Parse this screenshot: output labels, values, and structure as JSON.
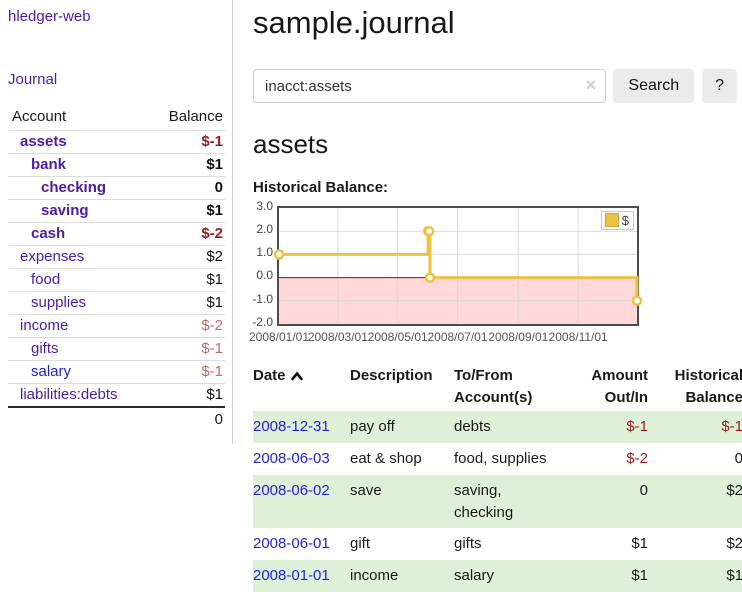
{
  "sidebar": {
    "brand": "hledger-web",
    "nav": {
      "journal": "Journal"
    },
    "accounts": {
      "col_account": "Account",
      "col_balance": "Balance",
      "items": [
        {
          "label": "assets",
          "balance": "$-1"
        },
        {
          "label": "bank",
          "balance": "$1"
        },
        {
          "label": "checking",
          "balance": "0"
        },
        {
          "label": "saving",
          "balance": "$1"
        },
        {
          "label": "cash",
          "balance": "$-2"
        },
        {
          "label": "expenses",
          "balance": "$2"
        },
        {
          "label": "food",
          "balance": "$1"
        },
        {
          "label": "supplies",
          "balance": "$1"
        },
        {
          "label": "income",
          "balance": "$-2"
        },
        {
          "label": "gifts",
          "balance": "$-1"
        },
        {
          "label": "salary",
          "balance": "$-1"
        },
        {
          "label": "liabilities:debts",
          "balance": "$1"
        }
      ],
      "total": "0"
    }
  },
  "main": {
    "title": "sample.journal",
    "search": {
      "value": "inacct:assets",
      "clear_icon": "✕",
      "button": "Search",
      "help": "?"
    },
    "section_title": "assets",
    "chart_label": "Historical Balance:"
  },
  "chart_data": {
    "type": "line",
    "title": "Historical Balance",
    "legend_label": "$",
    "legend_position": "top-right",
    "series": [
      {
        "name": "$",
        "points": [
          [
            "2008-01-01",
            1
          ],
          [
            "2008-06-01",
            2
          ],
          [
            "2008-06-02",
            2
          ],
          [
            "2008-06-03",
            0
          ],
          [
            "2008-12-31",
            -1
          ]
        ],
        "step": true
      }
    ],
    "x_min": "2008-01-01",
    "x_max": "2008-12-31",
    "x_ticks": [
      "2008/01/01",
      "2008/03/01",
      "2008/05/01",
      "2008/07/01",
      "2008/09/01",
      "2008/11/01"
    ],
    "y_ticks": [
      "3.0",
      "2.0",
      "1.0",
      "0.0",
      "-1.0",
      "-2.0"
    ],
    "ylim": [
      -2,
      3
    ],
    "grid": true,
    "colors": {
      "series": "#edc240",
      "marker_fill": "#ffffff",
      "negative_region": "#ffd9d9",
      "zero_line": "#a40000",
      "grid": "#d9d9d9"
    }
  },
  "transactions": {
    "headers": {
      "date": "Date",
      "description": "Description",
      "accounts": "To/From\nAccount(s)",
      "amount": "Amount\nOut/In",
      "balance": "Historical\nBalance"
    },
    "rows": [
      {
        "date": "2008-12-31",
        "description": "pay off",
        "accounts": "debts",
        "amount": "$-1",
        "balance": "$-1"
      },
      {
        "date": "2008-06-03",
        "description": "eat & shop",
        "accounts": "food, supplies",
        "amount": "$-2",
        "balance": "0"
      },
      {
        "date": "2008-06-02",
        "description": "save",
        "accounts": "saving,\nchecking",
        "amount": "0",
        "balance": "$2"
      },
      {
        "date": "2008-06-01",
        "description": "gift",
        "accounts": "gifts",
        "amount": "$1",
        "balance": "$2"
      },
      {
        "date": "2008-01-01",
        "description": "income",
        "accounts": "salary",
        "amount": "$1",
        "balance": "$1"
      }
    ]
  },
  "colors": {
    "link_purple": "#4a1ca8",
    "link_blue": "#2222dd",
    "negative_strong": "#9a1a1e",
    "negative_muted": "#bf696e",
    "row_shaded": "#dff0d8"
  }
}
